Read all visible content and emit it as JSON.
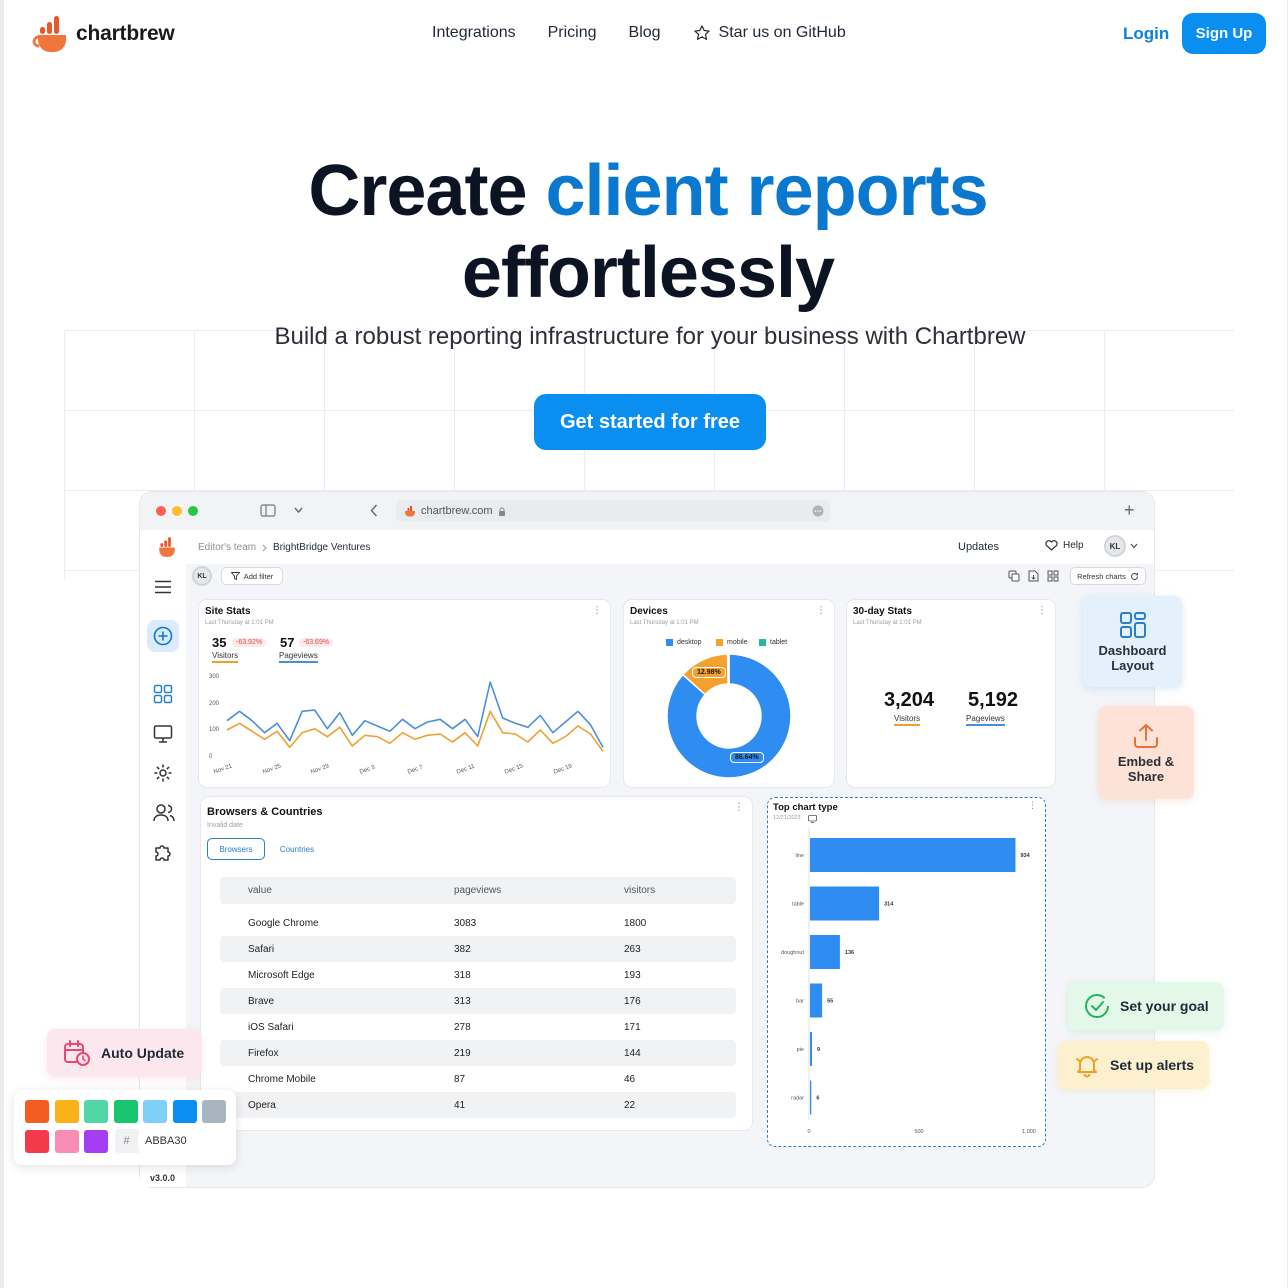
{
  "nav": {
    "brand": "chartbrew",
    "links": [
      "Integrations",
      "Pricing",
      "Blog"
    ],
    "github_label": "Star us on GitHub",
    "login_label": "Login",
    "signup_label": "Sign Up"
  },
  "hero": {
    "title_part1": "Create ",
    "title_accent": "client reports",
    "title_part2": "effortlessly",
    "subtitle": "Build a robust reporting infrastructure for your business with Chartbrew",
    "cta_label": "Get started for free"
  },
  "browser": {
    "url": "chartbrew.com",
    "plus": "+"
  },
  "app": {
    "breadcrumb_team": "Editor's team",
    "breadcrumb_project": "BrightBridge Ventures",
    "updates_label": "Updates",
    "help_label": "Help",
    "avatar_initials": "KL",
    "add_filter_label": "Add filter",
    "refresh_label": "Refresh charts",
    "version": "v3.0.0"
  },
  "site_stats": {
    "title": "Site Stats",
    "subtitle": "Last Thursday at 1:01 PM",
    "visitors_value": "35",
    "visitors_change": "-63.92%",
    "visitors_label": "Visitors",
    "pageviews_value": "57",
    "pageviews_change": "-63.69%",
    "pageviews_label": "Pageviews",
    "chart_data": {
      "type": "line",
      "x_ticks": [
        "Nov 21",
        "Nov 25",
        "Nov 29",
        "Dec 3",
        "Dec 7",
        "Dec 11",
        "Dec 15",
        "Dec 19"
      ],
      "y_ticks": [
        "300",
        "200",
        "100",
        "0"
      ],
      "ylim": [
        0,
        300
      ],
      "series": [
        {
          "color": "#4a90d9",
          "values": [
            140,
            175,
            140,
            95,
            130,
            65,
            175,
            180,
            110,
            170,
            85,
            140,
            120,
            100,
            145,
            110,
            135,
            145,
            110,
            145,
            80,
            285,
            150,
            130,
            115,
            160,
            95,
            135,
            175,
            125,
            40
          ]
        },
        {
          "color": "#f0a030",
          "values": [
            105,
            130,
            100,
            70,
            100,
            40,
            95,
            110,
            80,
            115,
            45,
            85,
            80,
            55,
            95,
            70,
            85,
            90,
            60,
            95,
            45,
            175,
            95,
            90,
            60,
            105,
            55,
            80,
            120,
            90,
            25
          ]
        }
      ]
    }
  },
  "devices": {
    "title": "Devices",
    "subtitle": "Last Thursday at 1:01 PM",
    "chart_data": {
      "type": "pie",
      "legend": [
        {
          "name": "desktop",
          "color": "#2f8cf0"
        },
        {
          "name": "mobile",
          "color": "#f5a12e"
        },
        {
          "name": "tablet",
          "color": "#2bb5a0"
        }
      ],
      "slices": [
        {
          "name": "desktop",
          "value": 86.64,
          "label": "86.64%",
          "color": "#2f8cf0"
        },
        {
          "name": "mobile",
          "value": 12.98,
          "label": "12.98%",
          "color": "#f5a12e"
        },
        {
          "name": "tablet",
          "value": 0.38,
          "color": "#2bb5a0"
        }
      ]
    }
  },
  "stats30": {
    "title": "30-day Stats",
    "subtitle": "Last Thursday at 1:01 PM",
    "visitors_value": "3,204",
    "visitors_label": "Visitors",
    "pageviews_value": "5,192",
    "pageviews_label": "Pageviews"
  },
  "browsers": {
    "title": "Browsers & Countries",
    "subtitle": "Invalid date",
    "tabs": [
      "Browsers",
      "Countries"
    ],
    "columns": [
      "value",
      "pageviews",
      "visitors"
    ],
    "rows": [
      [
        "Google Chrome",
        "3083",
        "1800"
      ],
      [
        "Safari",
        "382",
        "263"
      ],
      [
        "Microsoft Edge",
        "318",
        "193"
      ],
      [
        "Brave",
        "313",
        "176"
      ],
      [
        "iOS Safari",
        "278",
        "171"
      ],
      [
        "Firefox",
        "219",
        "144"
      ],
      [
        "Chrome Mobile",
        "87",
        "46"
      ],
      [
        "Opera",
        "41",
        "22"
      ]
    ]
  },
  "top_chart": {
    "title": "Top chart type",
    "subtitle": "12/21/2023",
    "chart_data": {
      "type": "bar",
      "orientation": "horizontal",
      "categories": [
        "line",
        "table",
        "doughnut",
        "bar",
        "pie",
        "radar"
      ],
      "values": [
        934,
        314,
        136,
        55,
        9,
        6
      ],
      "value_labels": [
        "934",
        "314",
        "136",
        "55",
        "9",
        "6"
      ],
      "x_ticks": [
        "0",
        "500",
        "1,000"
      ],
      "xlim": [
        0,
        1000
      ],
      "color": "#2f8cf0"
    }
  },
  "features": {
    "dashboard_line1": "Dashboard",
    "dashboard_line2": "Layout",
    "embed_line1": "Embed &",
    "embed_line2": "Share",
    "goal": "Set your goal",
    "alerts": "Set up alerts",
    "auto_update": "Auto Update"
  },
  "palette": {
    "row1": [
      "#f45d20",
      "#f9b21a",
      "#4fd6a4",
      "#18c46e",
      "#7fd0f8",
      "#0a8ef0",
      "#a8b4bf"
    ],
    "row2": [
      "#f23a4c",
      "#f78db2",
      "#a43ef5"
    ],
    "hash": "#",
    "hex_value": "ABBA30"
  }
}
